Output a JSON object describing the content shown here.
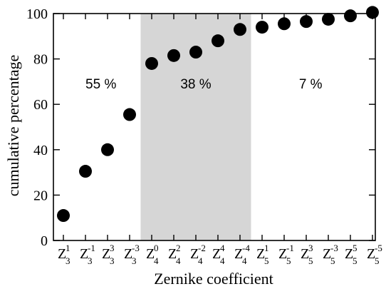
{
  "chart_data": {
    "type": "scatter",
    "xlabel": "Zernike coefficient",
    "ylabel": "cumulative percentage",
    "ylim": [
      0,
      100
    ],
    "yticks": [
      0,
      20,
      40,
      60,
      80,
      100
    ],
    "grid": false,
    "categories": [
      {
        "base": "Z",
        "sup": "1",
        "sub": "3"
      },
      {
        "base": "Z",
        "sup": "-1",
        "sub": "3"
      },
      {
        "base": "Z",
        "sup": "3",
        "sub": "3"
      },
      {
        "base": "Z",
        "sup": "-3",
        "sub": "3"
      },
      {
        "base": "Z",
        "sup": "0",
        "sub": "4"
      },
      {
        "base": "Z",
        "sup": "2",
        "sub": "4"
      },
      {
        "base": "Z",
        "sup": "-2",
        "sub": "4"
      },
      {
        "base": "Z",
        "sup": "4",
        "sub": "4"
      },
      {
        "base": "Z",
        "sup": "-4",
        "sub": "4"
      },
      {
        "base": "Z",
        "sup": "1",
        "sub": "5"
      },
      {
        "base": "Z",
        "sup": "-1",
        "sub": "5"
      },
      {
        "base": "Z",
        "sup": "3",
        "sub": "5"
      },
      {
        "base": "Z",
        "sup": "-3",
        "sub": "5"
      },
      {
        "base": "Z",
        "sup": "5",
        "sub": "5"
      },
      {
        "base": "Z",
        "sup": "-5",
        "sub": "5"
      }
    ],
    "values": [
      11,
      30.5,
      40,
      55.5,
      78,
      81.5,
      83,
      88,
      93,
      94,
      95.5,
      96.5,
      97.5,
      99,
      100.5
    ],
    "shaded_region": {
      "from_index": 3.5,
      "to_index": 8.5,
      "color": "#d6d6d6"
    },
    "region_labels": [
      {
        "text": "55 %",
        "x_index": 1.7,
        "y": 67
      },
      {
        "text": "38 %",
        "x_index": 6.0,
        "y": 67
      },
      {
        "text": "7 %",
        "x_index": 11.2,
        "y": 67
      }
    ],
    "marker_color": "#000000"
  }
}
